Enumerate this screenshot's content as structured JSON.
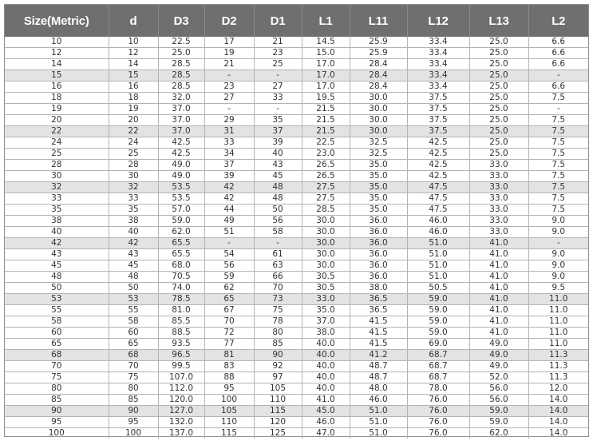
{
  "table": {
    "headers": [
      "Size(Metric)",
      "d",
      "D3",
      "D2",
      "D1",
      "L1",
      "L11",
      "L12",
      "L13",
      "L2"
    ],
    "shaded_rows": [
      3,
      8,
      13,
      18,
      23,
      28,
      33,
      38
    ],
    "rows": [
      [
        "10",
        "10",
        "22.5",
        "17",
        "21",
        "14.5",
        "25.9",
        "33.4",
        "25.0",
        "6.6"
      ],
      [
        "12",
        "12",
        "25.0",
        "19",
        "23",
        "15.0",
        "25.9",
        "33.4",
        "25.0",
        "6.6"
      ],
      [
        "14",
        "14",
        "28.5",
        "21",
        "25",
        "17.0",
        "28.4",
        "33.4",
        "25.0",
        "6.6"
      ],
      [
        "15",
        "15",
        "28.5",
        "-",
        "-",
        "17.0",
        "28.4",
        "33.4",
        "25.0",
        "-"
      ],
      [
        "16",
        "16",
        "28.5",
        "23",
        "27",
        "17.0",
        "28.4",
        "33.4",
        "25.0",
        "6.6"
      ],
      [
        "18",
        "18",
        "32.0",
        "27",
        "33",
        "19.5",
        "30.0",
        "37.5",
        "25.0",
        "7.5"
      ],
      [
        "19",
        "19",
        "37.0",
        "-",
        "-",
        "21.5",
        "30.0",
        "37.5",
        "25.0",
        "-"
      ],
      [
        "20",
        "20",
        "37.0",
        "29",
        "35",
        "21.5",
        "30.0",
        "37.5",
        "25.0",
        "7.5"
      ],
      [
        "22",
        "22",
        "37.0",
        "31",
        "37",
        "21.5",
        "30.0",
        "37.5",
        "25.0",
        "7.5"
      ],
      [
        "24",
        "24",
        "42.5",
        "33",
        "39",
        "22.5",
        "32.5",
        "42.5",
        "25.0",
        "7.5"
      ],
      [
        "25",
        "25",
        "42.5",
        "34",
        "40",
        "23.0",
        "32.5",
        "42.5",
        "25.0",
        "7.5"
      ],
      [
        "28",
        "28",
        "49.0",
        "37",
        "43",
        "26.5",
        "35.0",
        "42.5",
        "33.0",
        "7.5"
      ],
      [
        "30",
        "30",
        "49.0",
        "39",
        "45",
        "26.5",
        "35.0",
        "42.5",
        "33.0",
        "7.5"
      ],
      [
        "32",
        "32",
        "53.5",
        "42",
        "48",
        "27.5",
        "35.0",
        "47.5",
        "33.0",
        "7.5"
      ],
      [
        "33",
        "33",
        "53.5",
        "42",
        "48",
        "27.5",
        "35.0",
        "47.5",
        "33.0",
        "7.5"
      ],
      [
        "35",
        "35",
        "57.0",
        "44",
        "50",
        "28.5",
        "35.0",
        "47.5",
        "33.0",
        "7.5"
      ],
      [
        "38",
        "38",
        "59.0",
        "49",
        "56",
        "30.0",
        "36.0",
        "46.0",
        "33.0",
        "9.0"
      ],
      [
        "40",
        "40",
        "62.0",
        "51",
        "58",
        "30.0",
        "36.0",
        "46.0",
        "33.0",
        "9.0"
      ],
      [
        "42",
        "42",
        "65.5",
        "-",
        "-",
        "30.0",
        "36.0",
        "51.0",
        "41.0",
        "-"
      ],
      [
        "43",
        "43",
        "65.5",
        "54",
        "61",
        "30.0",
        "36.0",
        "51.0",
        "41.0",
        "9.0"
      ],
      [
        "45",
        "45",
        "68.0",
        "56",
        "63",
        "30.0",
        "36.0",
        "51.0",
        "41.0",
        "9.0"
      ],
      [
        "48",
        "48",
        "70.5",
        "59",
        "66",
        "30.5",
        "36.0",
        "51.0",
        "41.0",
        "9.0"
      ],
      [
        "50",
        "50",
        "74.0",
        "62",
        "70",
        "30.5",
        "38.0",
        "50.5",
        "41.0",
        "9.5"
      ],
      [
        "53",
        "53",
        "78.5",
        "65",
        "73",
        "33.0",
        "36.5",
        "59.0",
        "41.0",
        "11.0"
      ],
      [
        "55",
        "55",
        "81.0",
        "67",
        "75",
        "35.0",
        "36.5",
        "59.0",
        "41.0",
        "11.0"
      ],
      [
        "58",
        "58",
        "85.5",
        "70",
        "78",
        "37.0",
        "41.5",
        "59.0",
        "41.0",
        "11.0"
      ],
      [
        "60",
        "60",
        "88.5",
        "72",
        "80",
        "38.0",
        "41.5",
        "59.0",
        "41.0",
        "11.0"
      ],
      [
        "65",
        "65",
        "93.5",
        "77",
        "85",
        "40.0",
        "41.5",
        "69.0",
        "49.0",
        "11.0"
      ],
      [
        "68",
        "68",
        "96.5",
        "81",
        "90",
        "40.0",
        "41.2",
        "68.7",
        "49.0",
        "11.3"
      ],
      [
        "70",
        "70",
        "99.5",
        "83",
        "92",
        "40.0",
        "48.7",
        "68.7",
        "49.0",
        "11.3"
      ],
      [
        "75",
        "75",
        "107.0",
        "88",
        "97",
        "40.0",
        "48.7",
        "68.7",
        "52.0",
        "11.3"
      ],
      [
        "80",
        "80",
        "112.0",
        "95",
        "105",
        "40.0",
        "48.0",
        "78.0",
        "56.0",
        "12.0"
      ],
      [
        "85",
        "85",
        "120.0",
        "100",
        "110",
        "41.0",
        "46.0",
        "76.0",
        "56.0",
        "14.0"
      ],
      [
        "90",
        "90",
        "127.0",
        "105",
        "115",
        "45.0",
        "51.0",
        "76.0",
        "59.0",
        "14.0"
      ],
      [
        "95",
        "95",
        "132.0",
        "110",
        "120",
        "46.0",
        "51.0",
        "76.0",
        "59.0",
        "14.0"
      ],
      [
        "100",
        "100",
        "137.0",
        "115",
        "125",
        "47.0",
        "51.0",
        "76.0",
        "62.0",
        "14.0"
      ]
    ]
  }
}
